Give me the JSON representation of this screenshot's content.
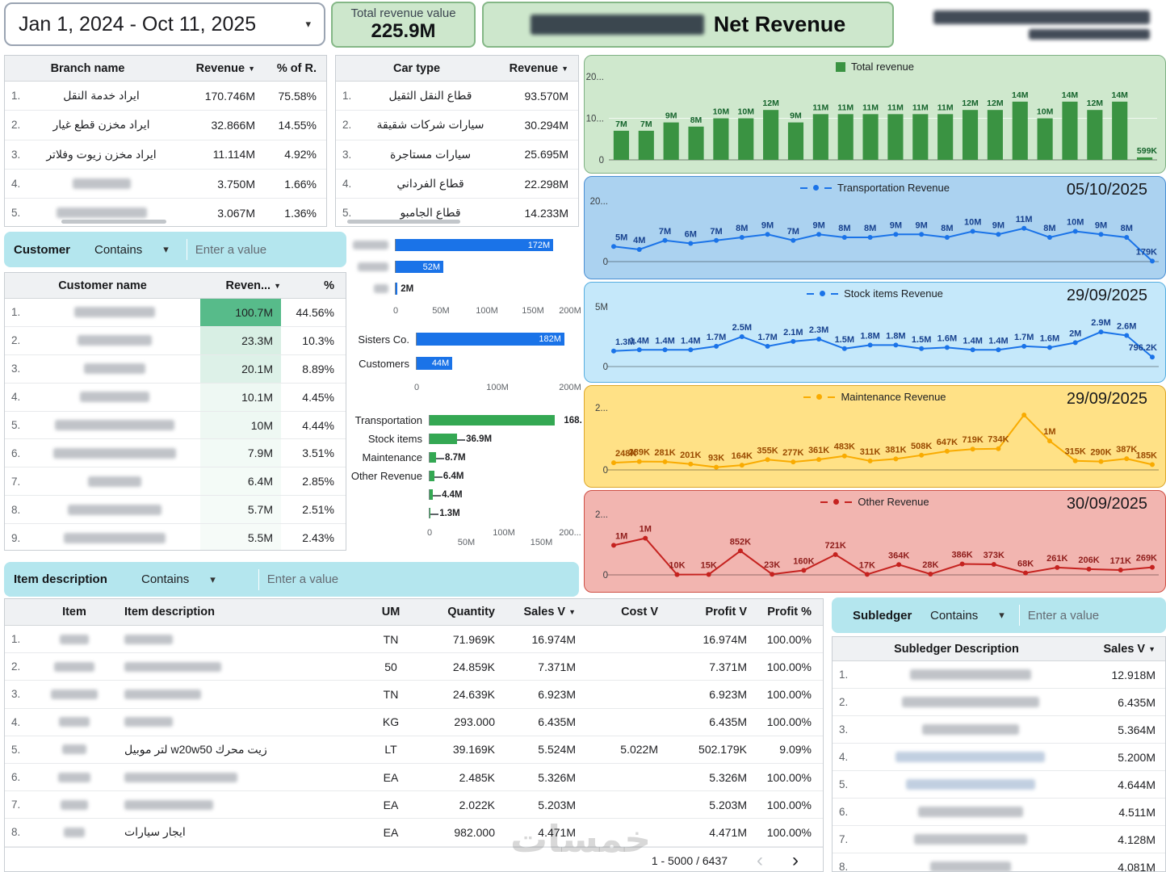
{
  "header": {
    "date_range": "Jan 1, 2024 - Oct 11, 2025",
    "total_revenue": {
      "label": "Total revenue value",
      "value": "225.9M"
    },
    "title": {
      "suffix": "Net Revenue"
    }
  },
  "filters": {
    "customer": {
      "label": "Customer",
      "operator": "Contains",
      "placeholder": "Enter a value"
    },
    "item": {
      "label": "Item description",
      "operator": "Contains",
      "placeholder": "Enter a value"
    },
    "subledger": {
      "label": "Subledger",
      "operator": "Contains",
      "placeholder": "Enter a value"
    }
  },
  "branch_table": {
    "headers": {
      "name": "Branch name",
      "revenue": "Revenue",
      "pct": "% of R."
    },
    "rows": [
      {
        "n": "1.",
        "name": "ايراد خدمة النقل",
        "revenue": "170.746M",
        "pct": "75.58%",
        "blur": false
      },
      {
        "n": "2.",
        "name": "ايراد مخزن قطع غيار",
        "revenue": "32.866M",
        "pct": "14.55%",
        "blur": false
      },
      {
        "n": "3.",
        "name": "ايراد مخزن زيوت وفلاتر",
        "revenue": "11.114M",
        "pct": "4.92%",
        "blur": false
      },
      {
        "n": "4.",
        "name": "",
        "revenue": "3.750M",
        "pct": "1.66%",
        "blur": true
      },
      {
        "n": "5.",
        "name": "",
        "revenue": "3.067M",
        "pct": "1.36%",
        "blur": true
      }
    ]
  },
  "car_table": {
    "headers": {
      "name": "Car type",
      "revenue": "Revenue"
    },
    "rows": [
      {
        "n": "1.",
        "name": "قطاع النقل الثقيل",
        "revenue": "93.570M"
      },
      {
        "n": "2.",
        "name": "سيارات شركات شقيقة",
        "revenue": "30.294M"
      },
      {
        "n": "3.",
        "name": "سيارات مستاجرة",
        "revenue": "25.695M"
      },
      {
        "n": "4.",
        "name": "قطاع الفرداني",
        "revenue": "22.298M"
      },
      {
        "n": "5.",
        "name": "قطاع الجامبو",
        "revenue": "14.233M"
      }
    ]
  },
  "customer_table": {
    "headers": {
      "name": "Customer name",
      "revenue": "Reven...",
      "pct": "%"
    },
    "rows": [
      {
        "n": "1.",
        "revenue": "100.7M",
        "pct": "44.56%",
        "bg": "#57bb8a"
      },
      {
        "n": "2.",
        "revenue": "23.3M",
        "pct": "10.3%",
        "bg": "#d8efe4"
      },
      {
        "n": "3.",
        "revenue": "20.1M",
        "pct": "8.89%",
        "bg": "#ddf1e8"
      },
      {
        "n": "4.",
        "revenue": "10.1M",
        "pct": "4.45%",
        "bg": "#eef8f3"
      },
      {
        "n": "5.",
        "revenue": "10M",
        "pct": "4.44%",
        "bg": "#eef8f3"
      },
      {
        "n": "6.",
        "revenue": "7.9M",
        "pct": "3.51%",
        "bg": "#f2faf6"
      },
      {
        "n": "7.",
        "revenue": "6.4M",
        "pct": "2.85%",
        "bg": "#f4fbf7"
      },
      {
        "n": "8.",
        "revenue": "5.7M",
        "pct": "2.51%",
        "bg": "#f5fbf8"
      },
      {
        "n": "9.",
        "revenue": "5.5M",
        "pct": "2.43%",
        "bg": "#f6fbf8"
      }
    ]
  },
  "items_table": {
    "headers": {
      "item": "Item",
      "desc": "Item description",
      "um": "UM",
      "qty": "Quantity",
      "sales": "Sales V",
      "cost": "Cost V",
      "profit": "Profit V",
      "profit_pct": "Profit %"
    },
    "rows": [
      {
        "n": "1.",
        "desc": "",
        "um": "TN",
        "qty": "71.969K",
        "sales": "16.974M",
        "cost": "",
        "profit": "16.974M",
        "profit_pct": "100.00%"
      },
      {
        "n": "2.",
        "desc": "",
        "um": "50",
        "qty": "24.859K",
        "sales": "7.371M",
        "cost": "",
        "profit": "7.371M",
        "profit_pct": "100.00%"
      },
      {
        "n": "3.",
        "desc": "",
        "um": "TN",
        "qty": "24.639K",
        "sales": "6.923M",
        "cost": "",
        "profit": "6.923M",
        "profit_pct": "100.00%"
      },
      {
        "n": "4.",
        "desc": "",
        "um": "KG",
        "qty": "293.000",
        "sales": "6.435M",
        "cost": "",
        "profit": "6.435M",
        "profit_pct": "100.00%"
      },
      {
        "n": "5.",
        "desc": "زيت محرك w20w50 لتر موبيل",
        "um": "LT",
        "qty": "39.169K",
        "sales": "5.524M",
        "cost": "5.022M",
        "profit": "502.179K",
        "profit_pct": "9.09%"
      },
      {
        "n": "6.",
        "desc": "",
        "um": "EA",
        "qty": "2.485K",
        "sales": "5.326M",
        "cost": "",
        "profit": "5.326M",
        "profit_pct": "100.00%"
      },
      {
        "n": "7.",
        "desc": "",
        "um": "EA",
        "qty": "2.022K",
        "sales": "5.203M",
        "cost": "",
        "profit": "5.203M",
        "profit_pct": "100.00%"
      },
      {
        "n": "8.",
        "desc": "ايجار سيارات",
        "um": "EA",
        "qty": "982.000",
        "sales": "4.471M",
        "cost": "",
        "profit": "4.471M",
        "profit_pct": "100.00%"
      }
    ],
    "pagination": "1 - 5000 / 6437"
  },
  "subledger_table": {
    "headers": {
      "desc": "Subledger Description",
      "sales": "Sales V"
    },
    "rows": [
      {
        "n": "1.",
        "sales": "12.918M"
      },
      {
        "n": "2.",
        "sales": "6.435M"
      },
      {
        "n": "3.",
        "sales": "5.364M"
      },
      {
        "n": "4.",
        "sales": "5.200M"
      },
      {
        "n": "5.",
        "sales": "4.644M"
      },
      {
        "n": "6.",
        "sales": "4.511M"
      },
      {
        "n": "7.",
        "sales": "4.128M"
      },
      {
        "n": "8.",
        "sales": "4.081M"
      }
    ]
  },
  "watermark": "خمسات",
  "chart_data": [
    {
      "id": "total_revenue_by_month",
      "type": "bar",
      "legend": "Total revenue",
      "unit": "M",
      "values": [
        7,
        7,
        9,
        8,
        10,
        10,
        12,
        9,
        11,
        11,
        11,
        11,
        11,
        11,
        12,
        12,
        14,
        10,
        14,
        12,
        14,
        0.599
      ],
      "labels": [
        "7M",
        "7M",
        "9M",
        "8M",
        "10M",
        "10M",
        "12M",
        "9M",
        "11M",
        "11M",
        "11M",
        "11M",
        "11M",
        "11M",
        "12M",
        "12M",
        "14M",
        "10M",
        "14M",
        "12M",
        "14M",
        "599K"
      ],
      "y_ticks": [
        "20...",
        "10...",
        "0"
      ],
      "ylim": [
        0,
        20
      ],
      "color": "#3a9342"
    },
    {
      "id": "transportation_revenue",
      "type": "line",
      "legend": "Transportation Revenue",
      "date": "05/10/2025",
      "unit": "M",
      "values": [
        5,
        4,
        7,
        6,
        7,
        8,
        9,
        7,
        9,
        8,
        8,
        9,
        9,
        8,
        10,
        9,
        11,
        8,
        10,
        9,
        8,
        0.179
      ],
      "labels": [
        "5M",
        "4M",
        "7M",
        "6M",
        "7M",
        "8M",
        "9M",
        "7M",
        "9M",
        "8M",
        "8M",
        "9M",
        "9M",
        "8M",
        "10M",
        "9M",
        "11M",
        "8M",
        "10M",
        "9M",
        "8M",
        "179K"
      ],
      "y_ticks": [
        "20...",
        "0"
      ],
      "ylim": [
        0,
        20
      ],
      "color": "#1a73e8"
    },
    {
      "id": "stock_items_revenue",
      "type": "line",
      "legend": "Stock items Revenue",
      "date": "29/09/2025",
      "unit": "M",
      "values": [
        1.3,
        1.4,
        1.4,
        1.4,
        1.7,
        2.5,
        1.7,
        2.1,
        2.3,
        1.5,
        1.8,
        1.8,
        1.5,
        1.6,
        1.4,
        1.4,
        1.7,
        1.6,
        2,
        2.9,
        2.6,
        0.7962
      ],
      "labels": [
        "1.3M",
        "1.4M",
        "1.4M",
        "1.4M",
        "1.7M",
        "2.5M",
        "1.7M",
        "2.1M",
        "2.3M",
        "1.5M",
        "1.8M",
        "1.8M",
        "1.5M",
        "1.6M",
        "1.4M",
        "1.4M",
        "1.7M",
        "1.6M",
        "2M",
        "2.9M",
        "2.6M",
        "796.2K"
      ],
      "y_ticks": [
        "5M",
        "0"
      ],
      "ylim": [
        0,
        5
      ],
      "color": "#1a73e8"
    },
    {
      "id": "maintenance_revenue",
      "type": "line",
      "legend": "Maintenance Revenue",
      "date": "29/09/2025",
      "unit": "M",
      "values": [
        0.248,
        0.289,
        0.281,
        0.201,
        0.093,
        0.164,
        0.355,
        0.277,
        0.361,
        0.483,
        0.311,
        0.381,
        0.508,
        0.647,
        0.719,
        0.734,
        1.9,
        1.0,
        0.315,
        0.29,
        0.387,
        0.185
      ],
      "labels": [
        "248K",
        "289K",
        "281K",
        "201K",
        "93K",
        "164K",
        "355K",
        "277K",
        "361K",
        "483K",
        "311K",
        "381K",
        "508K",
        "647K",
        "719K",
        "734K",
        "",
        "1M",
        "315K",
        "290K",
        "387K",
        "185K"
      ],
      "y_ticks": [
        "2...",
        "0"
      ],
      "ylim": [
        0,
        2.15
      ],
      "color": "#f9ab00"
    },
    {
      "id": "other_revenue",
      "type": "line",
      "legend": "Other Revenue",
      "date": "30/09/2025",
      "unit": "M",
      "values": [
        1.05,
        1.3,
        0.01,
        0.015,
        0.852,
        0.023,
        0.16,
        0.721,
        0.017,
        0.364,
        0.028,
        0.386,
        0.373,
        0.068,
        0.261,
        0.206,
        0.171,
        0.269
      ],
      "labels": [
        "1M",
        "1M",
        "10K",
        "15K",
        "852K",
        "23K",
        "160K",
        "721K",
        "17K",
        "364K",
        "28K",
        "386K",
        "373K",
        "68K",
        "261K",
        "206K",
        "171K",
        "269K"
      ],
      "y_ticks": [
        "2...",
        "0"
      ],
      "ylim": [
        0,
        2.15
      ],
      "color": "#c5221f"
    },
    {
      "id": "revenue_by_group",
      "type": "hbar",
      "unit": "M",
      "rows": [
        {
          "label": "",
          "value": 172,
          "text": "172M",
          "blur": true
        },
        {
          "label": "",
          "value": 52,
          "text": "52M",
          "blur": true
        },
        {
          "label": "",
          "value": 2,
          "text": "2M",
          "blur": true
        }
      ],
      "x_ticks": [
        "0",
        "50M",
        "100M",
        "150M",
        "200M"
      ],
      "xlim": [
        0,
        200
      ],
      "color": "#1a73e8"
    },
    {
      "id": "revenue_by_customer_type",
      "type": "hbar",
      "unit": "M",
      "rows": [
        {
          "label": "Sisters Co.",
          "value": 182,
          "text": "182M"
        },
        {
          "label": "Customers",
          "value": 44,
          "text": "44M"
        }
      ],
      "x_ticks": [
        "0",
        "100M",
        "200M"
      ],
      "xlim": [
        0,
        200
      ],
      "color": "#1a73e8"
    },
    {
      "id": "revenue_by_category",
      "type": "hbar",
      "unit": "M",
      "rows": [
        {
          "label": "Transportation",
          "value": 168,
          "text": "168."
        },
        {
          "label": "Stock items",
          "value": 36.9,
          "text": "36.9M"
        },
        {
          "label": "Maintenance",
          "value": 8.7,
          "text": "8.7M"
        },
        {
          "label": "Other Revenue",
          "value": 6.4,
          "text": "6.4M"
        },
        {
          "label": "",
          "value": 4.4,
          "text": "4.4M"
        },
        {
          "label": "",
          "value": 1.3,
          "text": "1.3M"
        }
      ],
      "x_ticks": [
        "0",
        "50M",
        "100M",
        "150M",
        "200..."
      ],
      "xlim": [
        0,
        200
      ],
      "color": "#34a853"
    }
  ]
}
